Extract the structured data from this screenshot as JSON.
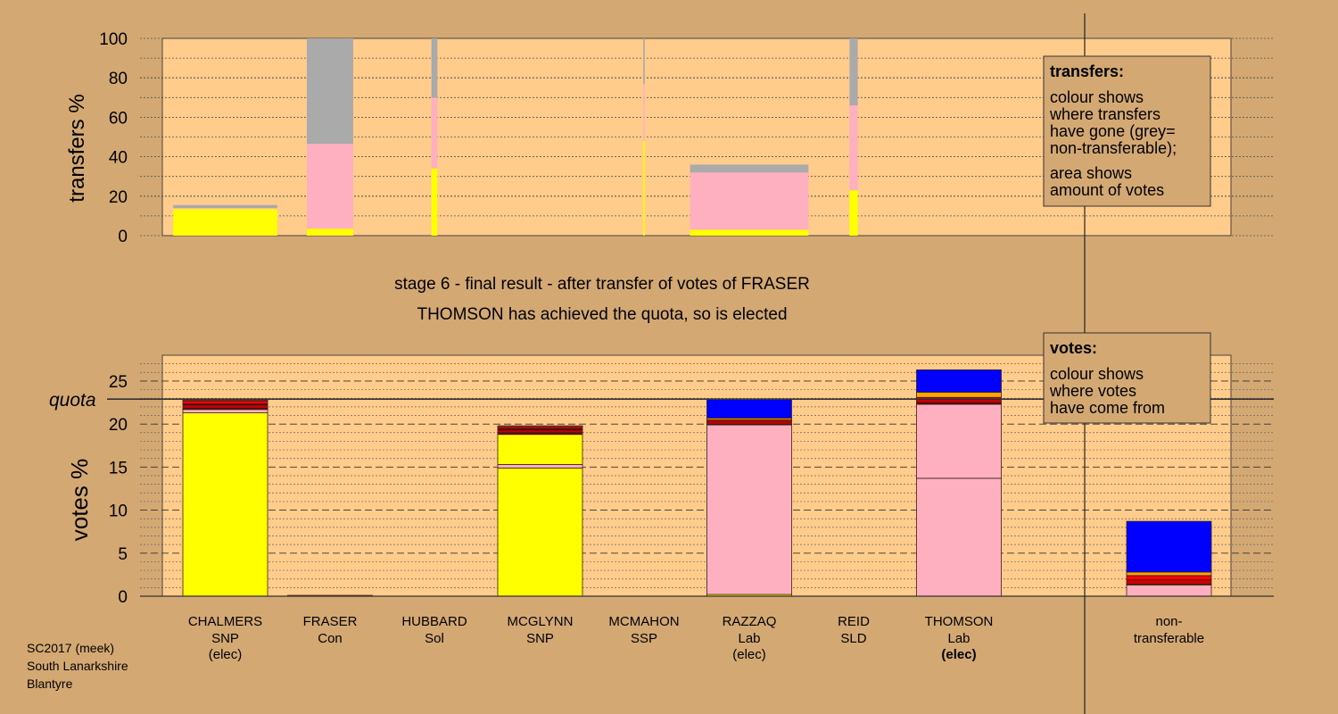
{
  "colors": {
    "background": "#d4a873",
    "plot_bg": "#ffcc8c",
    "snp": "#ffff00",
    "lab": "#ffb0c0",
    "con": "#0000ff",
    "sol": "#cc0000",
    "ssp": "#ff0000",
    "sld": "#ffa500",
    "nontransferable": "#aaaaaa",
    "dark": "#6b0000"
  },
  "title_line1": "stage 6 - final result - after transfer of votes of FRASER",
  "title_line2": "THOMSON has achieved the quota, so is elected",
  "footer": [
    "SC2017 (meek)",
    "South Lanarkshire",
    "Blantyre"
  ],
  "legend_transfers": {
    "title": "transfers:",
    "lines": [
      "colour shows",
      "where transfers",
      "have gone (grey=",
      "non-transferable);"
    ],
    "lines2": [
      "area shows",
      "amount of votes"
    ]
  },
  "legend_votes": {
    "title": "votes:",
    "lines": [
      "colour shows",
      "where votes",
      "have come from"
    ]
  },
  "chart_data": [
    {
      "type": "bar",
      "ylabel": "transfers %",
      "ylim": [
        0,
        100
      ],
      "yticks": [
        0,
        20,
        40,
        60,
        80,
        100
      ],
      "categories": [
        "CHALMERS",
        "FRASER",
        "HUBBARD",
        "MCGLYNN",
        "MCMAHON",
        "RAZZAQ",
        "REID",
        "THOMSON"
      ],
      "widths": [
        13.9,
        6.2,
        0.8,
        0,
        0.2,
        15.8,
        1.1,
        0
      ],
      "stacks": [
        [
          {
            "party": "snp",
            "value": 13.5
          },
          {
            "party": "lab",
            "value": 0.5
          },
          {
            "party": "nontransferable",
            "value": 1.5
          }
        ],
        [
          {
            "party": "snp",
            "value": 3.5
          },
          {
            "party": "lab",
            "value": 43
          },
          {
            "party": "nontransferable",
            "value": 53.5
          }
        ],
        [
          {
            "party": "snp",
            "value": 34
          },
          {
            "party": "lab",
            "value": 36
          },
          {
            "party": "nontransferable",
            "value": 30
          }
        ],
        [],
        [
          {
            "party": "snp",
            "value": 48
          },
          {
            "party": "lab",
            "value": 29
          },
          {
            "party": "nontransferable",
            "value": 23
          }
        ],
        [
          {
            "party": "snp",
            "value": 3
          },
          {
            "party": "lab",
            "value": 29
          },
          {
            "party": "nontransferable",
            "value": 4
          }
        ],
        [
          {
            "party": "snp",
            "value": 23
          },
          {
            "party": "lab",
            "value": 43
          },
          {
            "party": "nontransferable",
            "value": 34
          }
        ],
        []
      ]
    },
    {
      "type": "bar",
      "ylabel": "votes %",
      "ylim": [
        0,
        28
      ],
      "yticks": [
        0,
        5,
        10,
        15,
        20,
        25
      ],
      "quota": 22.9,
      "quota_label": "quota",
      "categories": [
        {
          "name": "CHALMERS",
          "party": "SNP",
          "note": "(elec)",
          "note_bold": false
        },
        {
          "name": "FRASER",
          "party": "Con",
          "note": "",
          "note_bold": false
        },
        {
          "name": "HUBBARD",
          "party": "Sol",
          "note": "",
          "note_bold": false
        },
        {
          "name": "MCGLYNN",
          "party": "SNP",
          "note": "",
          "note_bold": false
        },
        {
          "name": "MCMAHON",
          "party": "SSP",
          "note": "",
          "note_bold": false
        },
        {
          "name": "RAZZAQ",
          "party": "Lab",
          "note": "(elec)",
          "note_bold": false
        },
        {
          "name": "REID",
          "party": "SLD",
          "note": "",
          "note_bold": false
        },
        {
          "name": "THOMSON",
          "party": "Lab",
          "note": "(elec)",
          "note_bold": true
        }
      ],
      "nontransferable_label": [
        "non-",
        "transferable"
      ],
      "stacks": [
        [
          {
            "party": "snp",
            "value": 21.3
          },
          {
            "party": "lab",
            "value": 0.4
          },
          {
            "party": "dark",
            "value": 0.15
          },
          {
            "party": "sol",
            "value": 0.35
          },
          {
            "party": "dark",
            "value": 0.15
          },
          {
            "party": "ssp",
            "value": 0.35
          },
          {
            "party": "sld",
            "value": 0.1
          },
          {
            "party": "con",
            "value": 0.1
          }
        ],
        [
          {
            "party": "lab",
            "value": 0.1
          }
        ],
        [],
        [
          {
            "party": "snp",
            "value": 14.9
          },
          {
            "party": "lab",
            "value": 0.4
          },
          {
            "party": "snp",
            "value": 3.5
          },
          {
            "party": "dark",
            "value": 0.2
          },
          {
            "party": "sol",
            "value": 0.3
          },
          {
            "party": "dark",
            "value": 0.2
          },
          {
            "party": "ssp",
            "value": 0.2
          },
          {
            "party": "sld",
            "value": 0.1
          }
        ],
        [],
        [
          {
            "party": "snp",
            "value": 0.2
          },
          {
            "party": "lab",
            "value": 19.7
          },
          {
            "party": "dark",
            "value": 0.1
          },
          {
            "party": "sol",
            "value": 0.3
          },
          {
            "party": "ssp",
            "value": 0.2
          },
          {
            "party": "sld",
            "value": 0.2
          },
          {
            "party": "con",
            "value": 2.2
          }
        ],
        [],
        [
          {
            "party": "lab",
            "value": 13.7
          },
          {
            "party": "lab",
            "value": 8.6
          },
          {
            "party": "dark",
            "value": 0.2
          },
          {
            "party": "sol",
            "value": 0.4
          },
          {
            "party": "ssp",
            "value": 0.2
          },
          {
            "party": "sld",
            "value": 0.6
          },
          {
            "party": "con",
            "value": 2.6
          }
        ]
      ],
      "nontransferable_stack": [
        {
          "party": "lab",
          "value": 1.3
        },
        {
          "party": "snp",
          "value": 0.1
        },
        {
          "party": "sol",
          "value": 0.5
        },
        {
          "party": "ssp",
          "value": 0.5
        },
        {
          "party": "sld",
          "value": 0.4
        },
        {
          "party": "con",
          "value": 5.9
        }
      ]
    }
  ]
}
